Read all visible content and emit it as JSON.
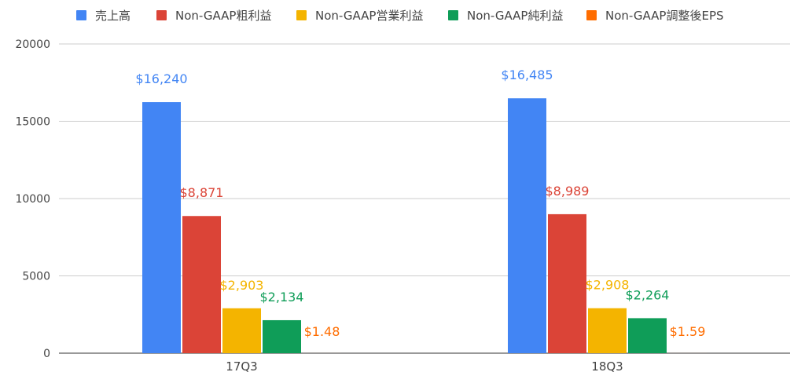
{
  "chart_data": {
    "type": "bar",
    "categories": [
      "17Q3",
      "18Q3"
    ],
    "series": [
      {
        "name": "売上高",
        "color": "#4285f4",
        "values": [
          16240,
          16485
        ],
        "labels": [
          "$16,240",
          "$16,485"
        ]
      },
      {
        "name": "Non-GAAP粗利益",
        "color": "#db4437",
        "values": [
          8871,
          8989
        ],
        "labels": [
          "$8,871",
          "$8,989"
        ]
      },
      {
        "name": "Non-GAAP営業利益",
        "color": "#f4b400",
        "values": [
          2903,
          2908
        ],
        "labels": [
          "$2,903",
          "$2,908"
        ]
      },
      {
        "name": "Non-GAAP純利益",
        "color": "#0f9d58",
        "values": [
          2134,
          2264
        ],
        "labels": [
          "$2,134",
          "$2,264"
        ]
      },
      {
        "name": "Non-GAAP調整後EPS",
        "color": "#ff6d00",
        "values": [
          1.48,
          1.59
        ],
        "labels": [
          "$1.48",
          "$1.59"
        ]
      }
    ],
    "ylim": [
      0,
      20000
    ],
    "yticks": [
      0,
      5000,
      10000,
      15000,
      20000
    ],
    "grid": true,
    "legend_position": "top",
    "title": "",
    "xlabel": "",
    "ylabel": ""
  }
}
